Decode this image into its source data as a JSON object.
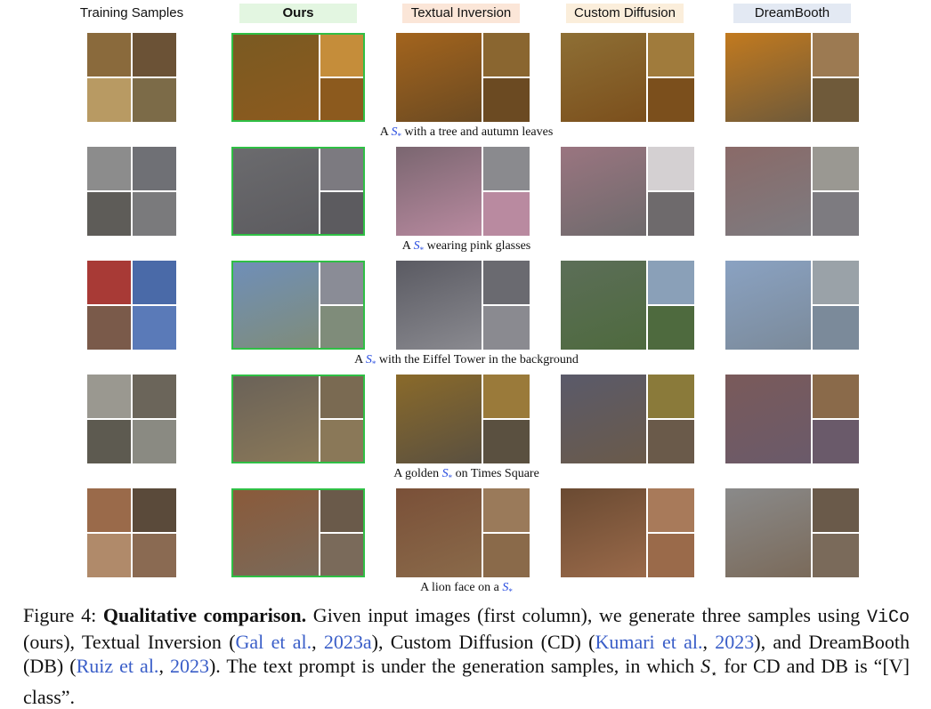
{
  "headers": {
    "training": "Training Samples",
    "ours": "Ours",
    "ti": "Textual Inversion",
    "cd": "Custom Diffusion",
    "db": "DreamBooth"
  },
  "header_colors": {
    "ours": "#e3f6e1",
    "ti": "#fbe6d8",
    "cd": "#fbeedb",
    "db": "#e3e9f3"
  },
  "rows": [
    {
      "prompt_pre": "A ",
      "token": "S",
      "token_sub": "*",
      "prompt_post": " with a tree and autumn leaves",
      "train_colors": [
        "#8a6a3c",
        "#6b5236",
        "#b89a63",
        "#7c6b48"
      ],
      "ours_colors": [
        "#7a5a22",
        "#c58d3a",
        "#8c5a1e"
      ],
      "ti_colors": [
        "#a3641d",
        "#8a6630",
        "#6b4a22"
      ],
      "cd_colors": [
        "#8e6f35",
        "#a07b3c",
        "#7b4f1c"
      ],
      "db_colors": [
        "#c27a1f",
        "#9c7a52",
        "#6f5a3a"
      ]
    },
    {
      "prompt_pre": "A ",
      "token": "S",
      "token_sub": "*",
      "prompt_post": " wearing pink glasses",
      "train_colors": [
        "#8c8c8c",
        "#6f7075",
        "#5e5c58",
        "#7a7a7c"
      ],
      "ours_colors": [
        "#6b6b6e",
        "#7c7a80",
        "#5c5b5f"
      ],
      "ti_colors": [
        "#7a6670",
        "#8a8a8e",
        "#b98aa0"
      ],
      "cd_colors": [
        "#9a7580",
        "#d4d0d2",
        "#6e6a6c"
      ],
      "db_colors": [
        "#8a6a68",
        "#9a9892",
        "#7d7b80"
      ]
    },
    {
      "prompt_pre": "A ",
      "token": "S",
      "token_sub": "*",
      "prompt_post": " with the Eiffel Tower in the background",
      "train_colors": [
        "#a83a36",
        "#4a6aa8",
        "#7a5a4a",
        "#5a7ab8"
      ],
      "ours_colors": [
        "#6f8fb8",
        "#8a8c96",
        "#7f8c7a"
      ],
      "ti_colors": [
        "#5a5a62",
        "#6a6a70",
        "#8a8a90"
      ],
      "cd_colors": [
        "#5c6e58",
        "#8aa0b8",
        "#4e6a3e"
      ],
      "db_colors": [
        "#8aa2c2",
        "#9aa2a8",
        "#7b8a9a"
      ]
    },
    {
      "prompt_pre": "A golden ",
      "token": "S",
      "token_sub": "*",
      "prompt_post": " on Times Square",
      "train_colors": [
        "#9a9890",
        "#6b655a",
        "#5d5a50",
        "#8a8a82"
      ],
      "ours_colors": [
        "#6a6258",
        "#7a6a52",
        "#8a7858"
      ],
      "ti_colors": [
        "#8a6a2a",
        "#9a7a3a",
        "#5a5040"
      ],
      "cd_colors": [
        "#5a5a6a",
        "#8a7a3a",
        "#6a5a4a"
      ],
      "db_colors": [
        "#7a5a5a",
        "#8a6a4a",
        "#6a5a6a"
      ]
    },
    {
      "prompt_pre": "A lion face on a ",
      "token": "S",
      "token_sub": "*",
      "prompt_post": "",
      "train_colors": [
        "#9a6a4a",
        "#5a4a3a",
        "#b08a6a",
        "#8a6a52"
      ],
      "ours_colors": [
        "#8a5a3a",
        "#6a5a4a",
        "#7a6a5a"
      ],
      "ti_colors": [
        "#7a5038",
        "#9a7a5a",
        "#8a6a4a"
      ],
      "cd_colors": [
        "#6a4a32",
        "#a87a5a",
        "#9a6a4a"
      ],
      "db_colors": [
        "#8a8a8a",
        "#6a5a4a",
        "#7a6a5a"
      ]
    }
  ],
  "caption": {
    "label": "Figure 4: ",
    "bold": "Qualitative comparison.",
    "t1": " Given input images (first column), we generate three samples using ",
    "vico": "ViCo",
    "t2": " (ours), Textual Inversion (",
    "c1": "Gal et al.",
    "t3": ", ",
    "c2": "2023a",
    "t4": "), Custom Diffusion (CD) (",
    "c3": "Kumari et al.",
    "t5": ", ",
    "c4": "2023",
    "t6": "), and DreamBooth (DB) (",
    "c5": "Ruiz et al.",
    "t7": ", ",
    "c6": "2023",
    "t8": "). The text prompt is under the generation samples, in which ",
    "s": "S",
    "t9": " for CD and DB is “[V] class”."
  }
}
